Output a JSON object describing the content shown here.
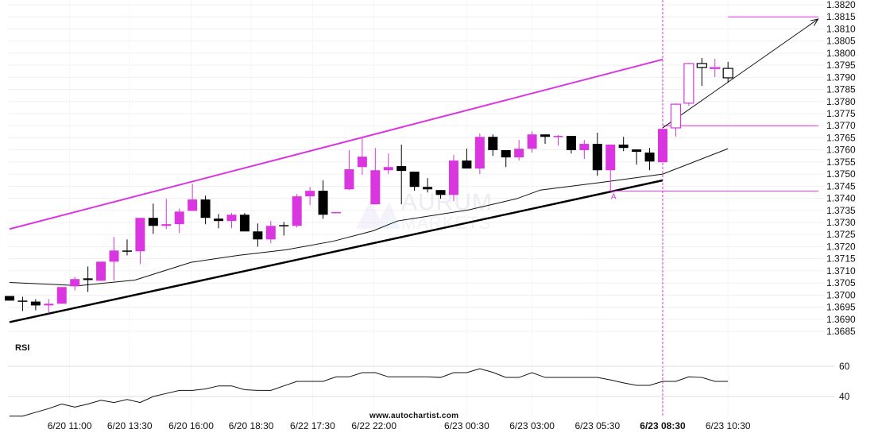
{
  "chart_data": {
    "type": "candlestick",
    "colors": {
      "bullish": "#d936e0",
      "bearish": "#000000",
      "pattern": "#d936e0",
      "grid": "#f0f0f0"
    },
    "price_axis": {
      "ylim": [
        1.3685,
        1.382
      ],
      "ticks": [
        "1.3820",
        "1.3815",
        "1.3810",
        "1.3805",
        "1.3800",
        "1.3795",
        "1.3790",
        "1.3785",
        "1.3780",
        "1.3775",
        "1.3770",
        "1.3765",
        "1.3760",
        "1.3755",
        "1.3750",
        "1.3745",
        "1.3740",
        "1.3735",
        "1.3730",
        "1.3725",
        "1.3720",
        "1.3715",
        "1.3710",
        "1.3705",
        "1.3700",
        "1.3695",
        "1.3690",
        "1.3685"
      ]
    },
    "x_axis": {
      "labels": [
        {
          "text": "6/20 11:00",
          "at_bar": 4.6
        },
        {
          "text": "6/20 13:30",
          "at_bar": 9.2
        },
        {
          "text": "6/20 16:00",
          "at_bar": 13.9
        },
        {
          "text": "6/20 18:30",
          "at_bar": 18.5
        },
        {
          "text": "6/22 17:30",
          "at_bar": 23.2
        },
        {
          "text": "6/22 22:00",
          "at_bar": 27.9
        },
        {
          "text": "6/23 00:30",
          "at_bar": 35
        },
        {
          "text": "6/23 03:00",
          "at_bar": 40
        },
        {
          "text": "6/23 05:30",
          "at_bar": 45
        },
        {
          "text": "6/23 08:30",
          "at_bar": 50,
          "bold": true
        },
        {
          "text": "6/23 10:30",
          "at_bar": 55
        }
      ]
    },
    "candles_ohlc": [
      [
        1.36996,
        1.36996,
        1.36977,
        1.36977
      ],
      [
        1.36977,
        1.36993,
        1.36934,
        1.36973
      ],
      [
        1.36973,
        1.36983,
        1.36937,
        1.36957
      ],
      [
        1.36957,
        1.36983,
        1.36924,
        1.36964
      ],
      [
        1.36964,
        1.37033,
        1.36964,
        1.37033
      ],
      [
        1.37036,
        1.37075,
        1.37019,
        1.37066
      ],
      [
        1.37069,
        1.37118,
        1.37013,
        1.37062
      ],
      [
        1.37059,
        1.37138,
        1.37059,
        1.37138
      ],
      [
        1.37138,
        1.3724,
        1.37059,
        1.37184
      ],
      [
        1.37184,
        1.3723,
        1.37164,
        1.37181
      ],
      [
        1.37181,
        1.37319,
        1.37128,
        1.37319
      ],
      [
        1.37319,
        1.37378,
        1.37253,
        1.37286
      ],
      [
        1.37286,
        1.37398,
        1.37273,
        1.37293
      ],
      [
        1.37293,
        1.37358,
        1.37256,
        1.37345
      ],
      [
        1.37348,
        1.3746,
        1.37348,
        1.37395
      ],
      [
        1.37395,
        1.37411,
        1.37293,
        1.37319
      ],
      [
        1.37316,
        1.37335,
        1.37276,
        1.37306
      ],
      [
        1.37306,
        1.37339,
        1.37276,
        1.37332
      ],
      [
        1.37332,
        1.37339,
        1.37263,
        1.37263
      ],
      [
        1.37263,
        1.37296,
        1.372,
        1.3723
      ],
      [
        1.3723,
        1.37306,
        1.37214,
        1.37286
      ],
      [
        1.37289,
        1.37302,
        1.37246,
        1.37286
      ],
      [
        1.37286,
        1.37418,
        1.37279,
        1.37408
      ],
      [
        1.37408,
        1.37447,
        1.37372,
        1.37431
      ],
      [
        1.37431,
        1.37474,
        1.37316,
        1.37332
      ],
      [
        1.37342,
        1.37343,
        1.37342,
        1.37343
      ],
      [
        1.37437,
        1.37599,
        1.37434,
        1.3752
      ],
      [
        1.37529,
        1.37648,
        1.37497,
        1.37572
      ],
      [
        1.37375,
        1.37608,
        1.37375,
        1.37516
      ],
      [
        1.37516,
        1.37585,
        1.375,
        1.37529
      ],
      [
        1.37533,
        1.37622,
        1.37375,
        1.37513
      ],
      [
        1.3751,
        1.3751,
        1.37431,
        1.37447
      ],
      [
        1.37447,
        1.37483,
        1.37424,
        1.37437
      ],
      [
        1.37434,
        1.37434,
        1.37398,
        1.37414
      ],
      [
        1.37414,
        1.37579,
        1.37388,
        1.37556
      ],
      [
        1.37556,
        1.37605,
        1.37523,
        1.37523
      ],
      [
        1.37523,
        1.37668,
        1.375,
        1.37654
      ],
      [
        1.37654,
        1.37664,
        1.37575,
        1.37599
      ],
      [
        1.37599,
        1.37599,
        1.37529,
        1.37569
      ],
      [
        1.37569,
        1.37641,
        1.37556,
        1.37605
      ],
      [
        1.37605,
        1.37677,
        1.37589,
        1.37664
      ],
      [
        1.37664,
        1.37664,
        1.37625,
        1.37654
      ],
      [
        1.37657,
        1.37661,
        1.37618,
        1.37658
      ],
      [
        1.37658,
        1.37658,
        1.37585,
        1.37599
      ],
      [
        1.37599,
        1.37641,
        1.37562,
        1.37625
      ],
      [
        1.37625,
        1.37671,
        1.37493,
        1.37516
      ],
      [
        1.37516,
        1.37622,
        1.37516,
        1.37622
      ],
      [
        1.37622,
        1.37654,
        1.37595,
        1.37608
      ],
      [
        1.37602,
        1.37602,
        1.37539,
        1.37592
      ],
      [
        1.37589,
        1.37608,
        1.37516,
        1.37552
      ],
      [
        1.37549,
        1.37691,
        1.37549,
        1.37687
      ],
      [
        1.37691,
        1.37793,
        1.37655,
        1.37789
      ],
      [
        1.37793,
        1.3796,
        1.37783,
        1.37957
      ],
      [
        1.37957,
        1.3798,
        1.37865,
        1.37941
      ],
      [
        1.37941,
        1.37977,
        1.37901,
        1.37941
      ],
      [
        1.37937,
        1.37964,
        1.37878,
        1.37898
      ]
    ],
    "hollow_from_bar": 51,
    "moving_average": [
      [
        0,
        1.37052
      ],
      [
        5.35,
        1.37039
      ],
      [
        9.6,
        1.37062
      ],
      [
        13.87,
        1.37135
      ],
      [
        17.52,
        1.37164
      ],
      [
        21.17,
        1.37187
      ],
      [
        24.82,
        1.37223
      ],
      [
        27.86,
        1.37266
      ],
      [
        29.68,
        1.37306
      ],
      [
        35.16,
        1.37352
      ],
      [
        38.81,
        1.37398
      ],
      [
        40.63,
        1.37434
      ],
      [
        45.5,
        1.37467
      ],
      [
        50,
        1.375
      ],
      [
        55,
        1.37605
      ]
    ],
    "pattern": {
      "resistance_line": [
        [
          0,
          1.37273
        ],
        [
          50,
          1.37974
        ]
      ],
      "support_line": [
        [
          0,
          1.36888
        ],
        [
          50,
          1.37474
        ]
      ],
      "breakout_bar": 50,
      "forecast_arrow": [
        [
          50,
          1.37691
        ],
        [
          61.9,
          1.38141
        ]
      ],
      "target_level": {
        "price": 1.3815,
        "from_bar": 55
      },
      "breakout_level": {
        "price": 1.377,
        "from_bar": 50
      },
      "point_a_level": {
        "price": 1.3743,
        "from_bar": 46
      },
      "point_a_label": "A"
    },
    "rsi": {
      "title": "RSI",
      "ticks": [
        "60",
        "40"
      ],
      "tick_values": [
        60,
        40
      ],
      "values": [
        27,
        27,
        29.5,
        32,
        35,
        33,
        35,
        37.5,
        36,
        38,
        36,
        40,
        42,
        44,
        44,
        45,
        47,
        47,
        44.5,
        44,
        44,
        47,
        50,
        50,
        50,
        53,
        53,
        55.8,
        55.8,
        53,
        53,
        53,
        53,
        52.6,
        55.8,
        55.8,
        58.4,
        56,
        52.6,
        52.6,
        55.8,
        52.6,
        52.6,
        52.6,
        52.6,
        52.6,
        51,
        49,
        47.4,
        47.4,
        50,
        50,
        53,
        52.6,
        50,
        50
      ]
    },
    "watermark": {
      "line1": "AURUM",
      "line2": "MARKETS"
    },
    "credit": "www.autochartist.com"
  }
}
